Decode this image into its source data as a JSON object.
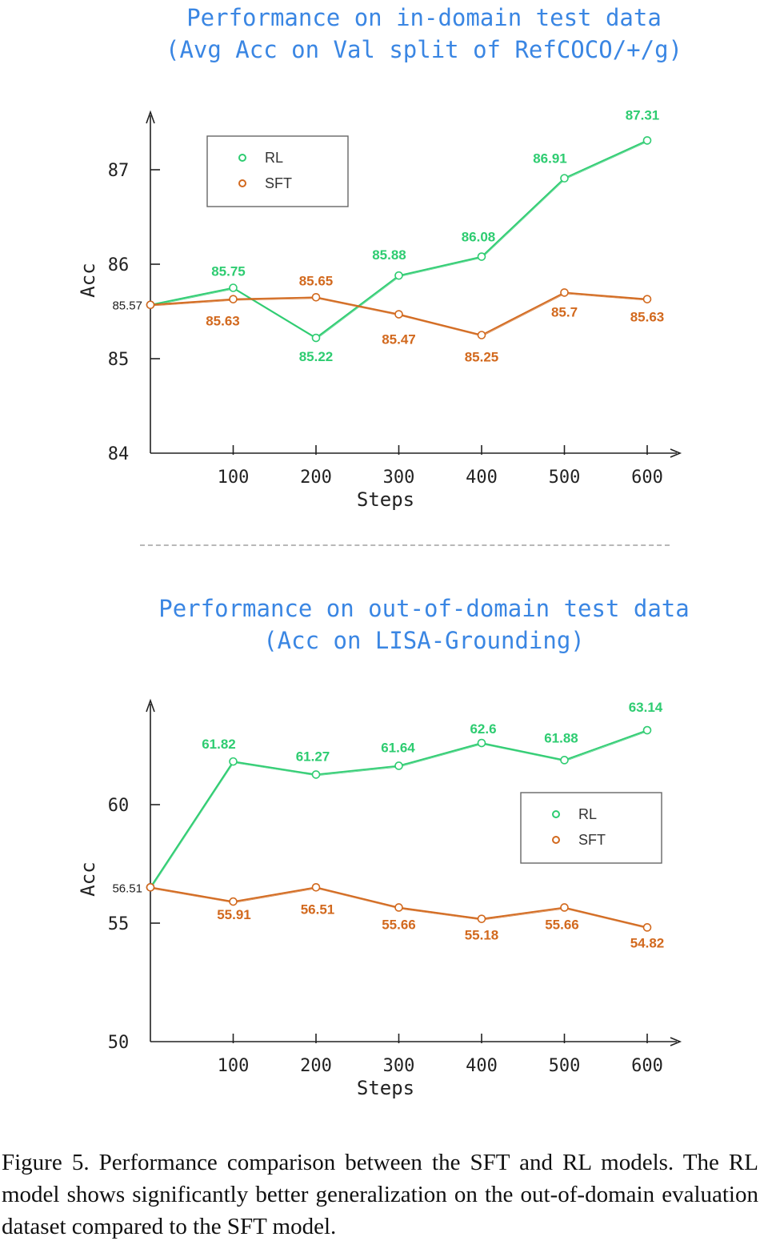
{
  "colors": {
    "title": "#3a86e3",
    "rl": "#2ecc71",
    "sft": "#d2691e",
    "axis": "#222222"
  },
  "chart_data": [
    {
      "type": "line",
      "title_lines": [
        "Performance on in-domain test data",
        "(Avg Acc on Val split of RefCOCO/+/g)"
      ],
      "xlabel": "Steps",
      "ylabel": "Acc",
      "x": [
        0,
        100,
        200,
        300,
        400,
        500,
        600
      ],
      "x_tick_labels": [
        "100",
        "200",
        "300",
        "400",
        "500",
        "600"
      ],
      "y_ticks": [
        "84",
        "85",
        "86",
        "87"
      ],
      "ylim": [
        84,
        87.4
      ],
      "start_label": "85.57",
      "legend_position": "top-left",
      "series": [
        {
          "name": "RL",
          "values": [
            85.57,
            85.75,
            85.22,
            85.88,
            86.08,
            86.91,
            87.31
          ],
          "labels": [
            "",
            "85.75",
            "85.22",
            "85.88",
            "86.08",
            "86.91",
            "87.31"
          ]
        },
        {
          "name": "SFT",
          "values": [
            85.57,
            85.63,
            85.65,
            85.47,
            85.25,
            85.7,
            85.63
          ],
          "labels": [
            "",
            "85.63",
            "85.65",
            "85.47",
            "85.25",
            "85.7",
            "85.63"
          ]
        }
      ]
    },
    {
      "type": "line",
      "title_lines": [
        "Performance on out-of-domain test data",
        "(Acc on LISA-Grounding)"
      ],
      "xlabel": "Steps",
      "ylabel": "Acc",
      "x": [
        0,
        100,
        200,
        300,
        400,
        500,
        600
      ],
      "x_tick_labels": [
        "100",
        "200",
        "300",
        "400",
        "500",
        "600"
      ],
      "y_ticks": [
        "50",
        "55",
        "60"
      ],
      "ylim": [
        50,
        63.5
      ],
      "start_label": "56.51",
      "legend_position": "right",
      "series": [
        {
          "name": "RL",
          "values": [
            56.51,
            61.82,
            61.27,
            61.64,
            62.6,
            61.88,
            63.14
          ],
          "labels": [
            "",
            "61.82",
            "61.27",
            "61.64",
            "62.6",
            "61.88",
            "63.14"
          ]
        },
        {
          "name": "SFT",
          "values": [
            56.51,
            55.91,
            56.51,
            55.66,
            55.18,
            55.66,
            54.82
          ],
          "labels": [
            "",
            "55.91",
            "56.51",
            "55.66",
            "55.18",
            "55.66",
            "54.82"
          ]
        }
      ]
    }
  ],
  "caption": "Figure 5. Performance comparison between the SFT and RL models. The RL model shows significantly better generalization on the out-of-domain evaluation dataset compared to the SFT model."
}
